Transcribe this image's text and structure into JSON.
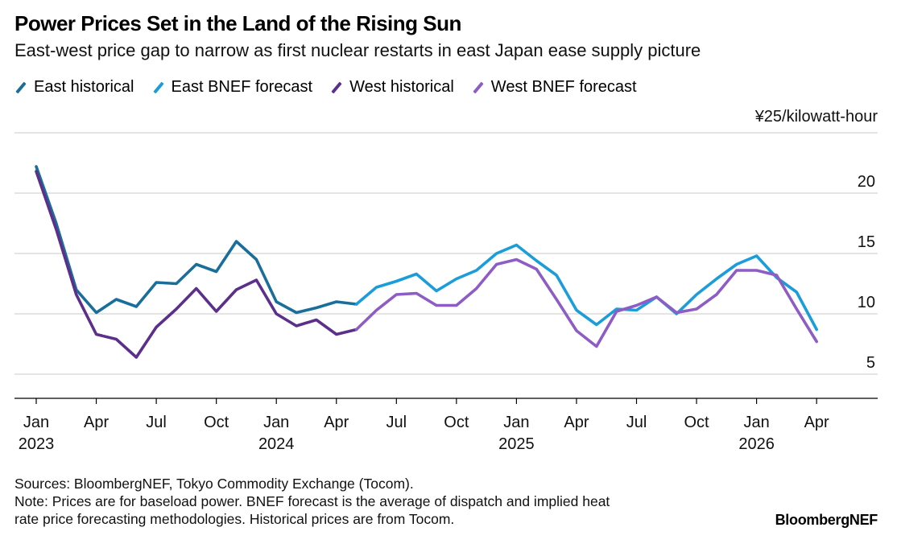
{
  "title": "Power Prices Set in the Land of the Rising Sun",
  "subtitle": "East-west price gap to narrow as first nuclear restarts in east Japan ease supply picture",
  "unit_label": "¥25/kilowatt-hour",
  "footer": {
    "sources": "Sources: BloombergNEF, Tokyo Commodity Exchange (Tocom).",
    "note_line1": "Note: Prices are for baseload power. BNEF forecast is the average of dispatch and implied heat",
    "note_line2": "rate price forecasting methodologies. Historical prices are from Tocom."
  },
  "brand": "BloombergNEF",
  "chart_data": {
    "type": "line",
    "title": "Power Prices Set in the Land of the Rising Sun",
    "subtitle": "East-west price gap to narrow as first nuclear restarts in east Japan ease supply picture",
    "xlabel": "",
    "ylabel": "¥25/kilowatt-hour",
    "ylim": [
      3,
      25
    ],
    "xlim": [
      "2023-01",
      "2026-08"
    ],
    "y_ticks": [
      5,
      10,
      15,
      20
    ],
    "y_tick_labels": [
      "5",
      "10",
      "15",
      "20"
    ],
    "x_ticks": [
      {
        "date": "2023-01",
        "label": "Jan",
        "year": "2023"
      },
      {
        "date": "2023-04",
        "label": "Apr",
        "year": ""
      },
      {
        "date": "2023-07",
        "label": "Jul",
        "year": ""
      },
      {
        "date": "2023-10",
        "label": "Oct",
        "year": ""
      },
      {
        "date": "2024-01",
        "label": "Jan",
        "year": "2024"
      },
      {
        "date": "2024-04",
        "label": "Apr",
        "year": ""
      },
      {
        "date": "2024-07",
        "label": "Jul",
        "year": ""
      },
      {
        "date": "2024-10",
        "label": "Oct",
        "year": ""
      },
      {
        "date": "2025-01",
        "label": "Jan",
        "year": "2025"
      },
      {
        "date": "2025-04",
        "label": "Apr",
        "year": ""
      },
      {
        "date": "2025-07",
        "label": "Jul",
        "year": ""
      },
      {
        "date": "2025-10",
        "label": "Oct",
        "year": ""
      },
      {
        "date": "2026-01",
        "label": "Jan",
        "year": "2026"
      },
      {
        "date": "2026-04",
        "label": "Apr",
        "year": ""
      }
    ],
    "grid": "horizontal",
    "legend_position": "top",
    "series": [
      {
        "name": "East historical",
        "color": "#1a6e9a",
        "x": [
          "2023-01",
          "2023-02",
          "2023-03",
          "2023-04",
          "2023-05",
          "2023-06",
          "2023-07",
          "2023-08",
          "2023-09",
          "2023-10",
          "2023-11",
          "2023-12",
          "2024-01",
          "2024-02",
          "2024-03",
          "2024-04",
          "2024-05"
        ],
        "y": [
          22.2,
          17.5,
          12.0,
          10.1,
          11.2,
          10.6,
          12.6,
          12.5,
          14.1,
          13.5,
          16.0,
          14.5,
          11.0,
          10.1,
          10.5,
          11.0,
          10.8
        ]
      },
      {
        "name": "East BNEF forecast",
        "color": "#1b9dd9",
        "x": [
          "2024-05",
          "2024-06",
          "2024-07",
          "2024-08",
          "2024-09",
          "2024-10",
          "2024-11",
          "2024-12",
          "2025-01",
          "2025-02",
          "2025-03",
          "2025-04",
          "2025-05",
          "2025-06",
          "2025-07",
          "2025-08",
          "2025-09",
          "2025-10",
          "2025-11",
          "2025-12",
          "2026-01",
          "2026-02",
          "2026-03",
          "2026-04"
        ],
        "y": [
          10.8,
          12.2,
          12.7,
          13.3,
          11.9,
          12.9,
          13.6,
          15.0,
          15.7,
          14.4,
          13.2,
          10.3,
          9.1,
          10.4,
          10.3,
          11.4,
          10.0,
          11.6,
          12.9,
          14.1,
          14.8,
          13.0,
          11.8,
          8.7
        ]
      },
      {
        "name": "West historical",
        "color": "#5b2f8a",
        "x": [
          "2023-01",
          "2023-02",
          "2023-03",
          "2023-04",
          "2023-05",
          "2023-06",
          "2023-07",
          "2023-08",
          "2023-09",
          "2023-10",
          "2023-11",
          "2023-12",
          "2024-01",
          "2024-02",
          "2024-03",
          "2024-04",
          "2024-05"
        ],
        "y": [
          21.8,
          17.0,
          11.6,
          8.3,
          7.9,
          6.4,
          8.9,
          10.4,
          12.1,
          10.2,
          12.0,
          12.8,
          10.0,
          9.0,
          9.5,
          8.3,
          8.7
        ]
      },
      {
        "name": "West BNEF forecast",
        "color": "#8d5cc4",
        "x": [
          "2024-05",
          "2024-06",
          "2024-07",
          "2024-08",
          "2024-09",
          "2024-10",
          "2024-11",
          "2024-12",
          "2025-01",
          "2025-02",
          "2025-03",
          "2025-04",
          "2025-05",
          "2025-06",
          "2025-07",
          "2025-08",
          "2025-09",
          "2025-10",
          "2025-11",
          "2025-12",
          "2026-01",
          "2026-02",
          "2026-03",
          "2026-04"
        ],
        "y": [
          8.7,
          10.3,
          11.6,
          11.7,
          10.7,
          10.7,
          12.1,
          14.1,
          14.5,
          13.7,
          11.2,
          8.6,
          7.3,
          10.2,
          10.7,
          11.4,
          10.1,
          10.4,
          11.6,
          13.6,
          13.6,
          13.2,
          10.4,
          7.7
        ]
      }
    ]
  }
}
